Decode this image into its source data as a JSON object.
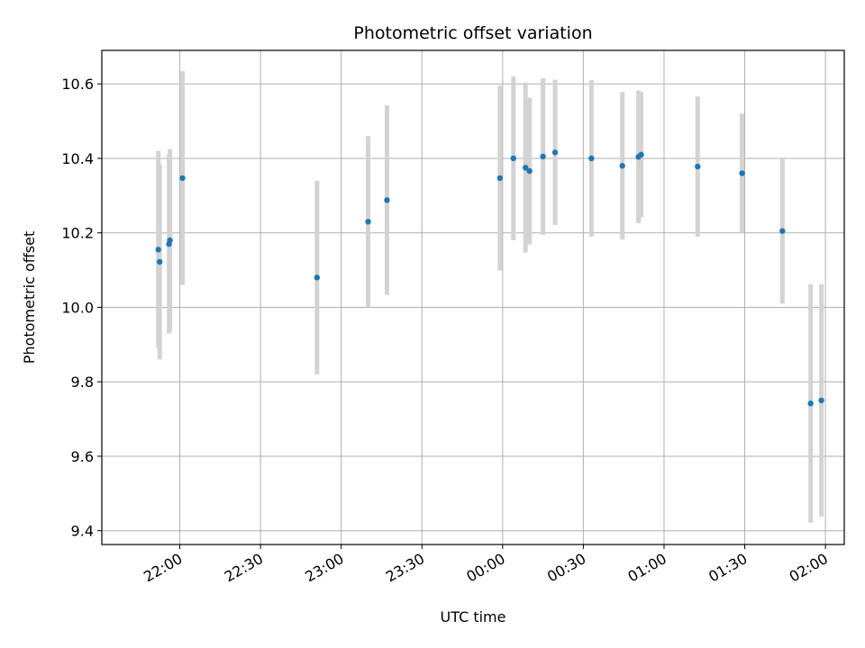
{
  "chart_data": {
    "type": "scatter",
    "title": "Photometric offset variation",
    "xlabel": "UTC time",
    "ylabel": "Photometric offset",
    "grid": true,
    "xlim": [
      "21:31",
      "02:07"
    ],
    "ylim": [
      9.363,
      10.69
    ],
    "x_ticks": [
      "22:00",
      "22:30",
      "23:00",
      "23:30",
      "00:00",
      "00:30",
      "01:00",
      "01:30",
      "02:00"
    ],
    "y_ticks": [
      9.4,
      9.6,
      9.8,
      10.0,
      10.2,
      10.4,
      10.6
    ],
    "points_color": "#1f77b4",
    "error_color": "#d3d3d3",
    "points": [
      {
        "time": "21:52:00",
        "y": 10.155,
        "err": 0.265
      },
      {
        "time": "21:52:30",
        "y": 10.122,
        "err": 0.262
      },
      {
        "time": "21:56:00",
        "y": 10.17,
        "err": 0.24
      },
      {
        "time": "21:56:20",
        "y": 10.18,
        "err": 0.245
      },
      {
        "time": "22:01:00",
        "y": 10.347,
        "err": 0.287
      },
      {
        "time": "22:51:00",
        "y": 10.08,
        "err": 0.26
      },
      {
        "time": "23:10:00",
        "y": 10.23,
        "err": 0.23
      },
      {
        "time": "23:17:00",
        "y": 10.288,
        "err": 0.255
      },
      {
        "time": "23:59:00",
        "y": 10.347,
        "err": 0.248
      },
      {
        "time": "00:04:00",
        "y": 10.4,
        "err": 0.22
      },
      {
        "time": "00:08:30",
        "y": 10.375,
        "err": 0.228
      },
      {
        "time": "00:10:00",
        "y": 10.366,
        "err": 0.197
      },
      {
        "time": "00:15:00",
        "y": 10.405,
        "err": 0.21
      },
      {
        "time": "00:19:30",
        "y": 10.416,
        "err": 0.195
      },
      {
        "time": "00:33:00",
        "y": 10.4,
        "err": 0.21
      },
      {
        "time": "00:44:30",
        "y": 10.38,
        "err": 0.198
      },
      {
        "time": "00:50:30",
        "y": 10.404,
        "err": 0.178
      },
      {
        "time": "00:51:30",
        "y": 10.41,
        "err": 0.168
      },
      {
        "time": "01:12:30",
        "y": 10.378,
        "err": 0.188
      },
      {
        "time": "01:29:00",
        "y": 10.36,
        "err": 0.16
      },
      {
        "time": "01:44:00",
        "y": 10.205,
        "err": 0.195
      },
      {
        "time": "01:54:30",
        "y": 9.742,
        "err": 0.32
      },
      {
        "time": "01:58:30",
        "y": 9.75,
        "err": 0.312
      }
    ]
  }
}
